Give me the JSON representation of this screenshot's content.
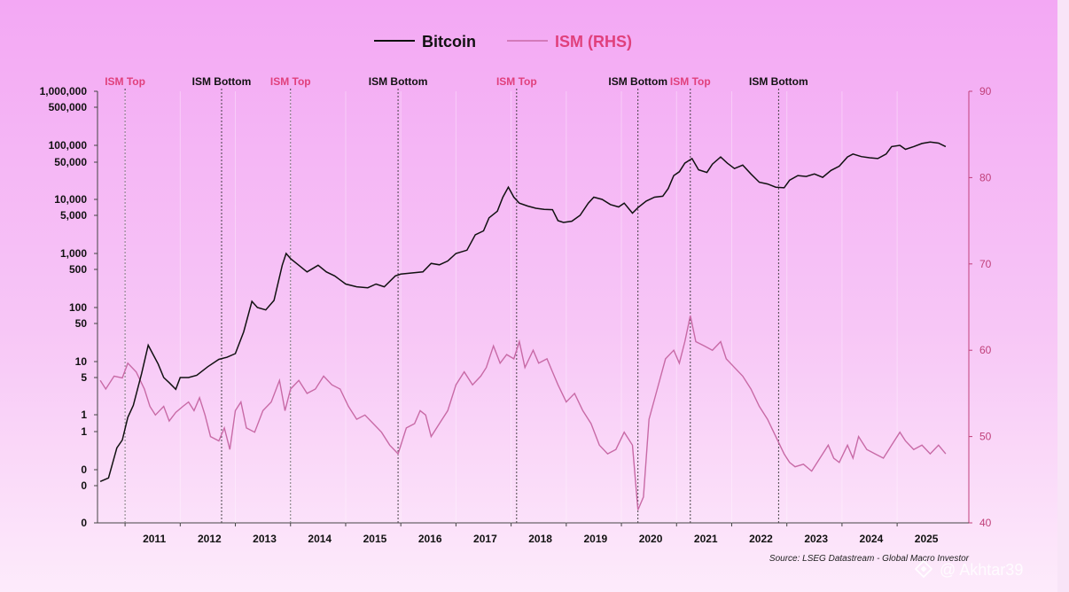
{
  "chart_data": {
    "type": "line",
    "legend": {
      "placement": "top-center"
    },
    "series": [
      {
        "name": "Bitcoin",
        "axis": "left",
        "color": "#111111",
        "points": [
          [
            2010.55,
            0.06
          ],
          [
            2010.7,
            0.07
          ],
          [
            2010.85,
            0.25
          ],
          [
            2010.95,
            0.35
          ],
          [
            2011.05,
            0.9
          ],
          [
            2011.15,
            1.5
          ],
          [
            2011.3,
            6
          ],
          [
            2011.42,
            20
          ],
          [
            2011.5,
            14
          ],
          [
            2011.6,
            9
          ],
          [
            2011.7,
            5
          ],
          [
            2011.8,
            4
          ],
          [
            2011.92,
            3
          ],
          [
            2012.0,
            5
          ],
          [
            2012.15,
            5
          ],
          [
            2012.3,
            5.5
          ],
          [
            2012.5,
            8
          ],
          [
            2012.7,
            11
          ],
          [
            2012.85,
            12
          ],
          [
            2013.0,
            14
          ],
          [
            2013.15,
            35
          ],
          [
            2013.3,
            130
          ],
          [
            2013.4,
            100
          ],
          [
            2013.55,
            90
          ],
          [
            2013.7,
            135
          ],
          [
            2013.85,
            600
          ],
          [
            2013.92,
            1000
          ],
          [
            2014.0,
            800
          ],
          [
            2014.15,
            600
          ],
          [
            2014.3,
            450
          ],
          [
            2014.5,
            600
          ],
          [
            2014.65,
            450
          ],
          [
            2014.8,
            380
          ],
          [
            2015.0,
            270
          ],
          [
            2015.2,
            240
          ],
          [
            2015.4,
            230
          ],
          [
            2015.55,
            270
          ],
          [
            2015.7,
            240
          ],
          [
            2015.9,
            380
          ],
          [
            2016.0,
            410
          ],
          [
            2016.2,
            430
          ],
          [
            2016.4,
            450
          ],
          [
            2016.55,
            650
          ],
          [
            2016.7,
            610
          ],
          [
            2016.85,
            720
          ],
          [
            2017.0,
            1000
          ],
          [
            2017.2,
            1150
          ],
          [
            2017.35,
            2200
          ],
          [
            2017.5,
            2600
          ],
          [
            2017.6,
            4500
          ],
          [
            2017.75,
            6000
          ],
          [
            2017.85,
            11000
          ],
          [
            2017.95,
            17000
          ],
          [
            2018.05,
            11000
          ],
          [
            2018.15,
            8500
          ],
          [
            2018.3,
            7500
          ],
          [
            2018.45,
            6800
          ],
          [
            2018.6,
            6500
          ],
          [
            2018.75,
            6400
          ],
          [
            2018.85,
            4000
          ],
          [
            2018.95,
            3700
          ],
          [
            2019.1,
            3900
          ],
          [
            2019.25,
            5000
          ],
          [
            2019.4,
            8500
          ],
          [
            2019.5,
            11000
          ],
          [
            2019.65,
            10000
          ],
          [
            2019.8,
            8000
          ],
          [
            2019.95,
            7200
          ],
          [
            2020.05,
            8500
          ],
          [
            2020.2,
            5500
          ],
          [
            2020.3,
            7000
          ],
          [
            2020.45,
            9300
          ],
          [
            2020.6,
            11000
          ],
          [
            2020.75,
            11500
          ],
          [
            2020.85,
            16000
          ],
          [
            2020.95,
            28000
          ],
          [
            2021.05,
            33000
          ],
          [
            2021.15,
            48000
          ],
          [
            2021.28,
            58000
          ],
          [
            2021.4,
            36000
          ],
          [
            2021.55,
            32000
          ],
          [
            2021.65,
            46000
          ],
          [
            2021.8,
            62000
          ],
          [
            2021.92,
            48000
          ],
          [
            2022.05,
            38000
          ],
          [
            2022.2,
            44000
          ],
          [
            2022.35,
            30000
          ],
          [
            2022.5,
            21000
          ],
          [
            2022.65,
            19500
          ],
          [
            2022.8,
            17000
          ],
          [
            2022.95,
            16500
          ],
          [
            2023.05,
            23000
          ],
          [
            2023.2,
            28000
          ],
          [
            2023.35,
            27000
          ],
          [
            2023.5,
            30000
          ],
          [
            2023.65,
            26000
          ],
          [
            2023.8,
            35000
          ],
          [
            2023.95,
            42000
          ],
          [
            2024.1,
            62000
          ],
          [
            2024.2,
            70000
          ],
          [
            2024.35,
            63000
          ],
          [
            2024.5,
            60000
          ],
          [
            2024.65,
            58000
          ],
          [
            2024.8,
            70000
          ],
          [
            2024.9,
            95000
          ],
          [
            2025.05,
            100000
          ],
          [
            2025.15,
            85000
          ],
          [
            2025.3,
            95000
          ],
          [
            2025.45,
            108000
          ],
          [
            2025.6,
            115000
          ],
          [
            2025.75,
            110000
          ],
          [
            2025.88,
            95000
          ]
        ]
      },
      {
        "name": "ISM (RHS)",
        "axis": "right",
        "color": "#c86aa6",
        "points": [
          [
            2010.55,
            56.5
          ],
          [
            2010.65,
            55.5
          ],
          [
            2010.8,
            57.0
          ],
          [
            2010.95,
            56.8
          ],
          [
            2011.05,
            58.5
          ],
          [
            2011.2,
            57.5
          ],
          [
            2011.35,
            55.5
          ],
          [
            2011.45,
            53.5
          ],
          [
            2011.55,
            52.5
          ],
          [
            2011.7,
            53.5
          ],
          [
            2011.8,
            51.8
          ],
          [
            2011.92,
            52.8
          ],
          [
            2012.05,
            53.5
          ],
          [
            2012.15,
            54.0
          ],
          [
            2012.25,
            53.0
          ],
          [
            2012.35,
            54.5
          ],
          [
            2012.45,
            52.5
          ],
          [
            2012.55,
            50.0
          ],
          [
            2012.7,
            49.5
          ],
          [
            2012.8,
            51.0
          ],
          [
            2012.9,
            48.5
          ],
          [
            2013.0,
            53.0
          ],
          [
            2013.1,
            54.0
          ],
          [
            2013.2,
            51.0
          ],
          [
            2013.35,
            50.5
          ],
          [
            2013.5,
            53.0
          ],
          [
            2013.65,
            54.0
          ],
          [
            2013.8,
            56.5
          ],
          [
            2013.9,
            53.0
          ],
          [
            2014.0,
            55.5
          ],
          [
            2014.15,
            56.5
          ],
          [
            2014.3,
            55.0
          ],
          [
            2014.45,
            55.5
          ],
          [
            2014.6,
            57.0
          ],
          [
            2014.75,
            56.0
          ],
          [
            2014.9,
            55.5
          ],
          [
            2015.05,
            53.5
          ],
          [
            2015.2,
            52.0
          ],
          [
            2015.35,
            52.5
          ],
          [
            2015.5,
            51.5
          ],
          [
            2015.65,
            50.5
          ],
          [
            2015.8,
            49.0
          ],
          [
            2015.95,
            48.0
          ],
          [
            2016.1,
            51.0
          ],
          [
            2016.25,
            51.5
          ],
          [
            2016.35,
            53.0
          ],
          [
            2016.45,
            52.5
          ],
          [
            2016.55,
            50.0
          ],
          [
            2016.7,
            51.5
          ],
          [
            2016.85,
            53.0
          ],
          [
            2017.0,
            56.0
          ],
          [
            2017.15,
            57.5
          ],
          [
            2017.3,
            56.0
          ],
          [
            2017.45,
            57.0
          ],
          [
            2017.55,
            58.0
          ],
          [
            2017.68,
            60.5
          ],
          [
            2017.8,
            58.5
          ],
          [
            2017.92,
            59.5
          ],
          [
            2018.05,
            59.0
          ],
          [
            2018.15,
            61.0
          ],
          [
            2018.25,
            58.0
          ],
          [
            2018.4,
            60.0
          ],
          [
            2018.5,
            58.5
          ],
          [
            2018.65,
            59.0
          ],
          [
            2018.75,
            57.5
          ],
          [
            2018.85,
            56.0
          ],
          [
            2019.0,
            54.0
          ],
          [
            2019.15,
            55.0
          ],
          [
            2019.3,
            53.0
          ],
          [
            2019.45,
            51.5
          ],
          [
            2019.6,
            49.0
          ],
          [
            2019.75,
            48.0
          ],
          [
            2019.9,
            48.5
          ],
          [
            2020.05,
            50.5
          ],
          [
            2020.2,
            49.0
          ],
          [
            2020.3,
            41.5
          ],
          [
            2020.4,
            43.0
          ],
          [
            2020.5,
            52.0
          ],
          [
            2020.65,
            55.5
          ],
          [
            2020.8,
            59.0
          ],
          [
            2020.95,
            60.0
          ],
          [
            2021.05,
            58.5
          ],
          [
            2021.15,
            61.0
          ],
          [
            2021.25,
            64.0
          ],
          [
            2021.35,
            61.0
          ],
          [
            2021.5,
            60.5
          ],
          [
            2021.65,
            60.0
          ],
          [
            2021.8,
            61.0
          ],
          [
            2021.9,
            59.0
          ],
          [
            2022.05,
            58.0
          ],
          [
            2022.2,
            57.0
          ],
          [
            2022.35,
            55.5
          ],
          [
            2022.5,
            53.5
          ],
          [
            2022.65,
            52.0
          ],
          [
            2022.8,
            50.0
          ],
          [
            2022.95,
            48.0
          ],
          [
            2023.05,
            47.0
          ],
          [
            2023.15,
            46.5
          ],
          [
            2023.3,
            46.8
          ],
          [
            2023.45,
            46.0
          ],
          [
            2023.6,
            47.5
          ],
          [
            2023.75,
            49.0
          ],
          [
            2023.85,
            47.5
          ],
          [
            2023.95,
            47.0
          ],
          [
            2024.1,
            49.0
          ],
          [
            2024.2,
            47.5
          ],
          [
            2024.3,
            50.0
          ],
          [
            2024.45,
            48.5
          ],
          [
            2024.6,
            48.0
          ],
          [
            2024.75,
            47.5
          ],
          [
            2024.9,
            49.0
          ],
          [
            2025.05,
            50.5
          ],
          [
            2025.15,
            49.5
          ],
          [
            2025.3,
            48.5
          ],
          [
            2025.45,
            49.0
          ],
          [
            2025.6,
            48.0
          ],
          [
            2025.75,
            49.0
          ],
          [
            2025.88,
            48.0
          ]
        ]
      }
    ],
    "x_axis": {
      "range": [
        2010.5,
        2026.3
      ],
      "tick_labels": [
        "2011",
        "2012",
        "2013",
        "2014",
        "2015",
        "2016",
        "2017",
        "2018",
        "2019",
        "2020",
        "2021",
        "2022",
        "2023",
        "2024",
        "2025"
      ],
      "tick_positions": [
        2011.0,
        2012.0,
        2013.0,
        2014.0,
        2015.0,
        2016.0,
        2017.0,
        2018.0,
        2019.0,
        2020.0,
        2021.0,
        2022.0,
        2023.0,
        2024.0,
        2025.0
      ]
    },
    "y_axis_left": {
      "scale": "log",
      "tick_labels": [
        "1,000,000",
        "500,000",
        "100,000",
        "50,000",
        "10,000",
        "5,000",
        "1,000",
        "500",
        "100",
        "50",
        "10",
        "5",
        "1",
        "1",
        "0",
        "0",
        "0"
      ],
      "tick_values": [
        1000000,
        500000,
        100000,
        50000,
        10000,
        5000,
        1000,
        500,
        100,
        50,
        10,
        5,
        1,
        0.5,
        0.1,
        0.05,
        0.01
      ]
    },
    "y_axis_right": {
      "range": [
        40,
        90
      ],
      "tick_labels": [
        "90",
        "80",
        "70",
        "60",
        "50",
        "40"
      ],
      "tick_values": [
        90,
        80,
        70,
        60,
        50,
        40
      ]
    },
    "events": [
      {
        "label": "ISM Top",
        "kind": "top",
        "x": 2011.0
      },
      {
        "label": "ISM Bottom",
        "kind": "bottom",
        "x": 2012.75
      },
      {
        "label": "ISM Top",
        "kind": "top",
        "x": 2014.0
      },
      {
        "label": "ISM Bottom",
        "kind": "bottom",
        "x": 2015.95
      },
      {
        "label": "ISM Top",
        "kind": "top",
        "x": 2018.1
      },
      {
        "label": "ISM Bottom",
        "kind": "bottom",
        "x": 2020.3
      },
      {
        "label": "ISM Top",
        "kind": "top",
        "x": 2021.25
      },
      {
        "label": "ISM Bottom",
        "kind": "bottom",
        "x": 2022.85
      }
    ],
    "source": "Source: LSEG Datastream - Global Macro Investor"
  },
  "watermark": "@ Akhtar39",
  "colors": {
    "background_top": "#f3a8f4",
    "background_bottom": "#fce8fb",
    "bitcoin": "#111111",
    "ism": "#c86aa6",
    "top_label": "#e0407c"
  }
}
